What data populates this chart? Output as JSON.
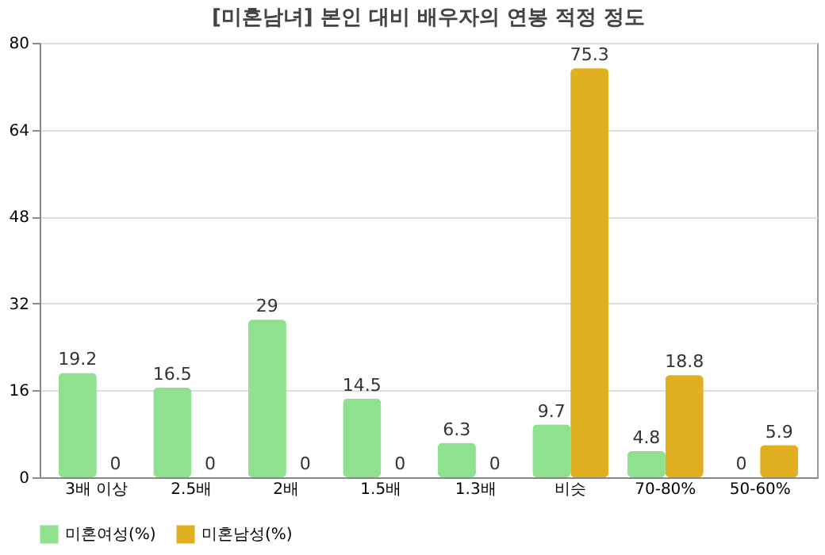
{
  "chart_data": {
    "type": "bar",
    "title": "[미혼남녀] 본인 대비 배우자의 연봉 적정 정도",
    "categories": [
      "3배 이상",
      "2.5배",
      "2배",
      "1.5배",
      "1.3배",
      "비슷",
      "70-80%",
      "50-60%"
    ],
    "series": [
      {
        "name": "미혼여성(%)",
        "color": "#8fe08f",
        "values": [
          19.2,
          16.5,
          29,
          14.5,
          6.3,
          9.7,
          4.8,
          0
        ]
      },
      {
        "name": "미혼남성(%)",
        "color": "#e0b020",
        "values": [
          0,
          0,
          0,
          0,
          0,
          75.3,
          18.8,
          5.9
        ]
      }
    ],
    "ylim": [
      0,
      80
    ],
    "yticks": [
      0,
      16,
      32,
      48,
      64,
      80
    ],
    "grid": "y",
    "legend": "bottom",
    "data_labels": true
  }
}
